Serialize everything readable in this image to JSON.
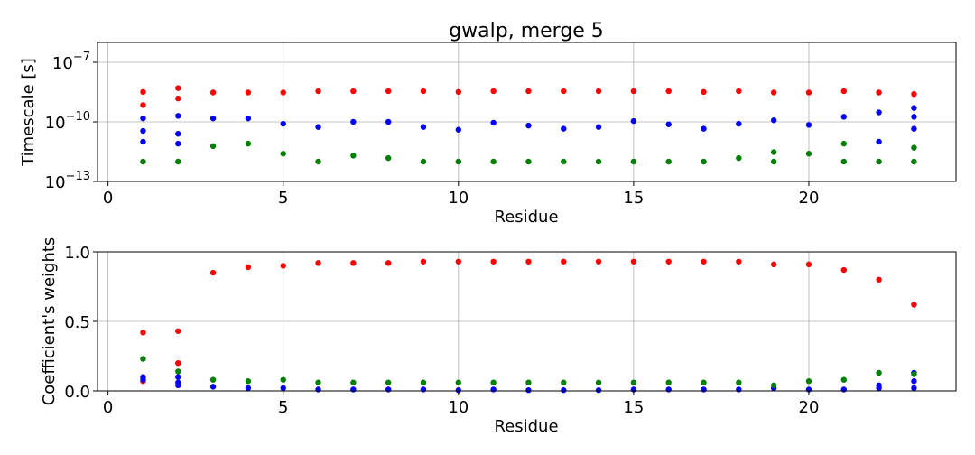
{
  "chart_data": [
    {
      "type": "scatter",
      "title": "gwalp, merge 5",
      "xlabel": "Residue",
      "ylabel": "Timescale [s]",
      "yscale": "log",
      "xlim": [
        -0.3,
        24.2
      ],
      "ylim": [
        1e-13,
        1e-06
      ],
      "xticks": [
        0,
        5,
        10,
        15,
        20
      ],
      "yticks": [
        1e-13,
        1e-10,
        1e-07
      ],
      "ytick_labels": [
        "10^-13",
        "10^-10",
        "10^-7"
      ],
      "grid": true,
      "series": [
        {
          "color": "#ff0000",
          "points": [
            [
              1,
              3.2e-09
            ],
            [
              1,
              7e-10
            ],
            [
              2,
              5e-09
            ],
            [
              2,
              1.5e-09
            ],
            [
              3,
              3e-09
            ],
            [
              4,
              3e-09
            ],
            [
              5,
              3e-09
            ],
            [
              6,
              3.5e-09
            ],
            [
              7,
              3.5e-09
            ],
            [
              8,
              3.5e-09
            ],
            [
              9,
              3.5e-09
            ],
            [
              10,
              3.2e-09
            ],
            [
              11,
              3.5e-09
            ],
            [
              12,
              3.5e-09
            ],
            [
              13,
              3.5e-09
            ],
            [
              14,
              3.5e-09
            ],
            [
              15,
              3.5e-09
            ],
            [
              16,
              3.5e-09
            ],
            [
              17,
              3.2e-09
            ],
            [
              18,
              3.5e-09
            ],
            [
              19,
              3e-09
            ],
            [
              20,
              3e-09
            ],
            [
              21,
              3.5e-09
            ],
            [
              22,
              3e-09
            ],
            [
              23,
              2.5e-09
            ]
          ]
        },
        {
          "color": "#0000ff",
          "points": [
            [
              1,
              1.5e-10
            ],
            [
              1,
              3.5e-11
            ],
            [
              1,
              1e-11
            ],
            [
              2,
              2e-10
            ],
            [
              2,
              2.5e-11
            ],
            [
              2,
              8e-12
            ],
            [
              3,
              1.5e-10
            ],
            [
              4,
              1.5e-10
            ],
            [
              5,
              8e-11
            ],
            [
              6,
              5.5e-11
            ],
            [
              7,
              1e-10
            ],
            [
              8,
              1e-10
            ],
            [
              9,
              5.5e-11
            ],
            [
              10,
              4e-11
            ],
            [
              11,
              9e-11
            ],
            [
              12,
              6.5e-11
            ],
            [
              13,
              4.5e-11
            ],
            [
              14,
              5.5e-11
            ],
            [
              15,
              1.1e-10
            ],
            [
              16,
              7.5e-11
            ],
            [
              17,
              4.5e-11
            ],
            [
              18,
              8e-11
            ],
            [
              19,
              1.2e-10
            ],
            [
              20,
              7e-11
            ],
            [
              21,
              1.8e-10
            ],
            [
              22,
              3e-10
            ],
            [
              22,
              1e-11
            ],
            [
              23,
              1.8e-10
            ],
            [
              23,
              5e-10
            ],
            [
              23,
              4.5e-11
            ]
          ]
        },
        {
          "color": "#008000",
          "points": [
            [
              1,
              1e-12
            ],
            [
              2,
              1e-12
            ],
            [
              3,
              6e-12
            ],
            [
              4,
              8e-12
            ],
            [
              5,
              2.5e-12
            ],
            [
              6,
              1e-12
            ],
            [
              7,
              2e-12
            ],
            [
              8,
              1.5e-12
            ],
            [
              9,
              1e-12
            ],
            [
              10,
              1e-12
            ],
            [
              11,
              1e-12
            ],
            [
              12,
              1e-12
            ],
            [
              13,
              1e-12
            ],
            [
              14,
              1e-12
            ],
            [
              15,
              1e-12
            ],
            [
              16,
              1e-12
            ],
            [
              17,
              1e-12
            ],
            [
              18,
              1.5e-12
            ],
            [
              19,
              3e-12
            ],
            [
              19,
              1e-12
            ],
            [
              20,
              2.5e-12
            ],
            [
              21,
              8e-12
            ],
            [
              21,
              1e-12
            ],
            [
              22,
              1e-12
            ],
            [
              23,
              5e-12
            ],
            [
              23,
              1e-12
            ]
          ]
        }
      ]
    },
    {
      "type": "scatter",
      "xlabel": "Residue",
      "ylabel": "Coefficient's weights",
      "yscale": "linear",
      "xlim": [
        -0.3,
        24.2
      ],
      "ylim": [
        0,
        1
      ],
      "xticks": [
        0,
        5,
        10,
        15,
        20
      ],
      "yticks": [
        0,
        0.5,
        1
      ],
      "ytick_labels": [
        "0.0",
        "0.5",
        "1.0"
      ],
      "grid": true,
      "series": [
        {
          "color": "#ff0000",
          "points": [
            [
              1,
              0.42
            ],
            [
              1,
              0.07
            ],
            [
              2,
              0.43
            ],
            [
              2,
              0.2
            ],
            [
              3,
              0.85
            ],
            [
              4,
              0.89
            ],
            [
              5,
              0.9
            ],
            [
              6,
              0.92
            ],
            [
              7,
              0.92
            ],
            [
              8,
              0.92
            ],
            [
              9,
              0.93
            ],
            [
              10,
              0.93
            ],
            [
              11,
              0.93
            ],
            [
              12,
              0.93
            ],
            [
              13,
              0.93
            ],
            [
              14,
              0.93
            ],
            [
              15,
              0.93
            ],
            [
              16,
              0.93
            ],
            [
              17,
              0.93
            ],
            [
              18,
              0.93
            ],
            [
              19,
              0.91
            ],
            [
              20,
              0.91
            ],
            [
              21,
              0.87
            ],
            [
              22,
              0.8
            ],
            [
              23,
              0.62
            ]
          ]
        },
        {
          "color": "#0000ff",
          "points": [
            [
              1,
              0.1
            ],
            [
              1,
              0.08
            ],
            [
              2,
              0.1
            ],
            [
              2,
              0.06
            ],
            [
              2,
              0.04
            ],
            [
              3,
              0.03
            ],
            [
              4,
              0.02
            ],
            [
              5,
              0.02
            ],
            [
              6,
              0.01
            ],
            [
              7,
              0.01
            ],
            [
              8,
              0.01
            ],
            [
              9,
              0.01
            ],
            [
              10,
              0.005
            ],
            [
              11,
              0.01
            ],
            [
              12,
              0.005
            ],
            [
              13,
              0.005
            ],
            [
              14,
              0.005
            ],
            [
              15,
              0.01
            ],
            [
              16,
              0.01
            ],
            [
              17,
              0.01
            ],
            [
              18,
              0.01
            ],
            [
              19,
              0.02
            ],
            [
              20,
              0.01
            ],
            [
              21,
              0.01
            ],
            [
              22,
              0.04
            ],
            [
              22,
              0.02
            ],
            [
              23,
              0.13
            ],
            [
              23,
              0.07
            ],
            [
              23,
              0.02
            ]
          ]
        },
        {
          "color": "#008000",
          "points": [
            [
              1,
              0.23
            ],
            [
              2,
              0.14
            ],
            [
              3,
              0.08
            ],
            [
              4,
              0.07
            ],
            [
              5,
              0.08
            ],
            [
              6,
              0.06
            ],
            [
              7,
              0.06
            ],
            [
              8,
              0.06
            ],
            [
              9,
              0.06
            ],
            [
              10,
              0.06
            ],
            [
              11,
              0.06
            ],
            [
              12,
              0.06
            ],
            [
              13,
              0.06
            ],
            [
              14,
              0.06
            ],
            [
              15,
              0.06
            ],
            [
              16,
              0.06
            ],
            [
              17,
              0.06
            ],
            [
              18,
              0.06
            ],
            [
              19,
              0.04
            ],
            [
              20,
              0.07
            ],
            [
              21,
              0.08
            ],
            [
              22,
              0.13
            ],
            [
              23,
              0.12
            ]
          ]
        }
      ]
    }
  ]
}
